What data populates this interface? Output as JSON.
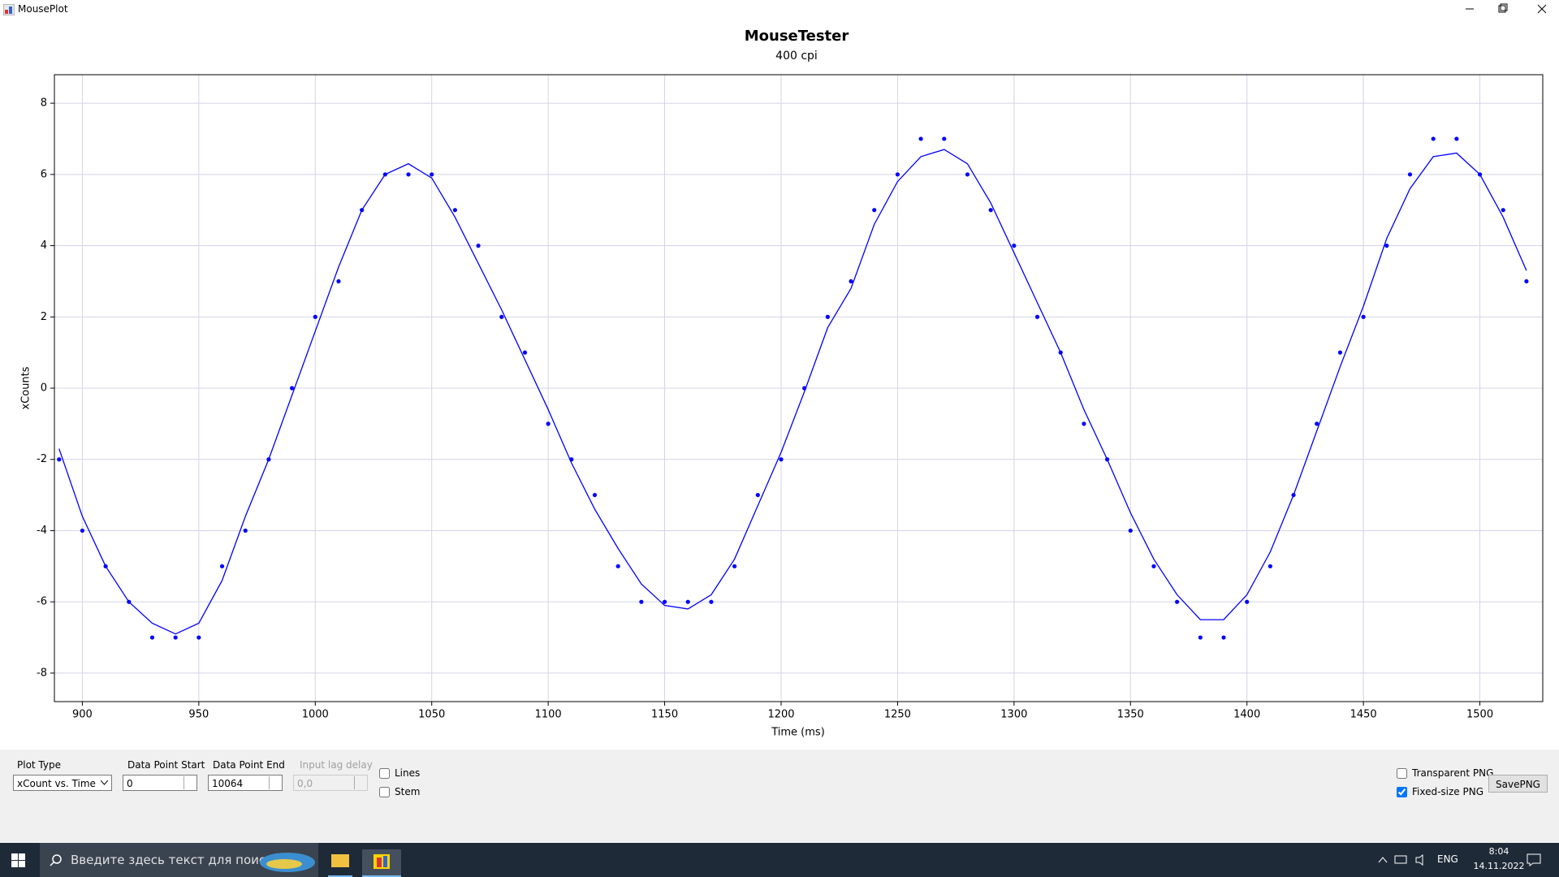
{
  "window": {
    "title": "MousePlot"
  },
  "chart_data": {
    "type": "scatter",
    "title": "MouseTester",
    "subtitle": "400 cpi",
    "x_label": "Time (ms)",
    "y_label": "xCounts",
    "x": [
      890,
      900,
      910,
      920,
      930,
      940,
      950,
      960,
      970,
      980,
      990,
      1000,
      1010,
      1020,
      1030,
      1040,
      1050,
      1060,
      1070,
      1080,
      1090,
      1100,
      1110,
      1120,
      1130,
      1140,
      1150,
      1160,
      1170,
      1180,
      1190,
      1200,
      1210,
      1220,
      1230,
      1240,
      1250,
      1260,
      1270,
      1280,
      1290,
      1300,
      1310,
      1320,
      1330,
      1340,
      1350,
      1360,
      1370,
      1380,
      1390,
      1400,
      1410,
      1420,
      1430,
      1440,
      1450,
      1460,
      1470,
      1480,
      1490,
      1500,
      1510,
      1520
    ],
    "series": [
      {
        "type": "line",
        "color": "#0000ff",
        "values": [
          -1.7,
          -3.6,
          -5.0,
          -6.0,
          -6.6,
          -6.9,
          -6.6,
          -5.4,
          -3.6,
          -2.0,
          -0.2,
          1.6,
          3.4,
          5.0,
          6.0,
          6.3,
          5.9,
          4.8,
          3.5,
          2.2,
          0.8,
          -0.6,
          -2.1,
          -3.4,
          -4.5,
          -5.5,
          -6.1,
          -6.2,
          -5.8,
          -4.8,
          -3.3,
          -1.8,
          -0.1,
          1.7,
          2.8,
          4.6,
          5.8,
          6.5,
          6.7,
          6.3,
          5.2,
          3.8,
          2.4,
          1.0,
          -0.6,
          -2.0,
          -3.5,
          -4.8,
          -5.8,
          -6.5,
          -6.5,
          -5.8,
          -4.6,
          -3.0,
          -1.2,
          0.6,
          2.3,
          4.2,
          5.6,
          6.5,
          6.6,
          6.0,
          4.8,
          3.3
        ]
      },
      {
        "type": "scatter",
        "color": "#0000ff",
        "values": [
          -2,
          -4,
          -5,
          -6,
          -7,
          -7,
          -7,
          -5,
          -4,
          -2,
          0,
          2,
          3,
          5,
          6,
          6,
          6,
          5,
          4,
          2,
          1,
          -1,
          -2,
          -3,
          -5,
          -6,
          -6,
          -6,
          -6,
          -5,
          -3,
          -2,
          0,
          2,
          3,
          5,
          6,
          7,
          7,
          6,
          5,
          4,
          2,
          1,
          -1,
          -2,
          -4,
          -5,
          -6,
          -7,
          -7,
          -6,
          -5,
          -3,
          -1,
          1,
          2,
          4,
          6,
          7,
          7,
          6,
          5,
          3
        ]
      }
    ],
    "xlim": [
      888,
      1527
    ],
    "ylim": [
      -8.8,
      8.8
    ],
    "xticks": [
      900,
      950,
      1000,
      1050,
      1100,
      1150,
      1200,
      1250,
      1300,
      1350,
      1400,
      1450,
      1500
    ],
    "yticks": [
      -8,
      -6,
      -4,
      -2,
      0,
      2,
      4,
      6,
      8
    ],
    "grid": true
  },
  "controls": {
    "plot_type": {
      "label": "Plot Type",
      "value": "xCount vs. Time"
    },
    "data_point_start": {
      "label": "Data Point Start",
      "value": 0
    },
    "data_point_end": {
      "label": "Data Point End",
      "value": 10064
    },
    "input_lag_delay": {
      "label": "Input lag delay",
      "value": "0,0"
    },
    "lines": {
      "label": "Lines",
      "checked": false
    },
    "stem": {
      "label": "Stem",
      "checked": false
    },
    "transparent_png": {
      "label": "Transparent PNG",
      "checked": false
    },
    "fixed_size_png": {
      "label": "Fixed-size PNG",
      "checked": true
    },
    "save_button": "SavePNG"
  },
  "taskbar": {
    "search": "Введите здесь текст для поиска",
    "language": "ENG",
    "time": "8:04",
    "date": "14.11.2022"
  }
}
